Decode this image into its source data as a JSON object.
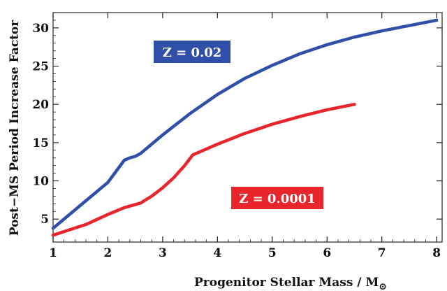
{
  "chart_data": {
    "type": "line",
    "xlabel": "Progenitor Stellar Mass / M",
    "xlabel_subscript": "⊙",
    "ylabel": "Post−MS Period Increase Factor",
    "xlim": [
      1,
      8.1
    ],
    "ylim": [
      2,
      32
    ],
    "x_ticks": [
      1,
      2,
      3,
      4,
      5,
      6,
      7,
      8
    ],
    "y_ticks": [
      5,
      10,
      15,
      20,
      25,
      30
    ],
    "grid": false,
    "series": [
      {
        "name": "Z = 0.02",
        "color": "#2f4fa8",
        "x": [
          1.0,
          1.5,
          2.0,
          2.3,
          2.4,
          2.5,
          2.6,
          3.0,
          3.5,
          4.0,
          4.5,
          5.0,
          5.5,
          6.0,
          6.5,
          7.0,
          7.5,
          8.0
        ],
        "y": [
          3.8,
          6.8,
          9.8,
          12.7,
          13.0,
          13.2,
          13.6,
          16.0,
          18.8,
          21.3,
          23.4,
          25.1,
          26.6,
          27.8,
          28.8,
          29.6,
          30.3,
          31.0
        ]
      },
      {
        "name": "Z = 0.0001",
        "color": "#e8252b",
        "x": [
          1.0,
          1.3,
          1.6,
          2.0,
          2.3,
          2.6,
          2.8,
          3.0,
          3.2,
          3.4,
          3.55,
          3.65,
          4.0,
          4.5,
          5.0,
          5.5,
          6.0,
          6.5
        ],
        "y": [
          2.9,
          3.6,
          4.3,
          5.6,
          6.5,
          7.1,
          8.0,
          9.1,
          10.4,
          12.0,
          13.4,
          13.7,
          14.8,
          16.2,
          17.4,
          18.4,
          19.3,
          20.0
        ]
      }
    ]
  }
}
